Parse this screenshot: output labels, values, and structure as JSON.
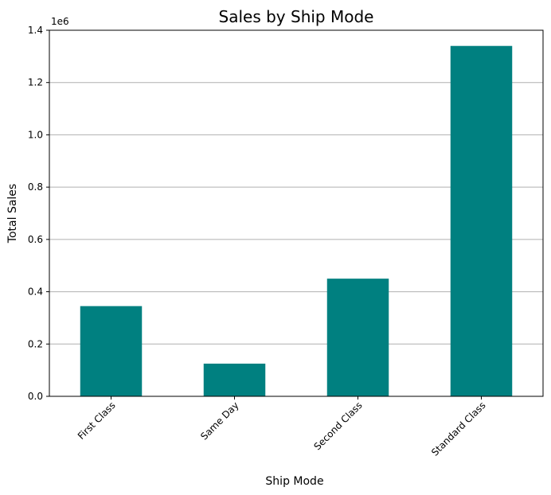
{
  "chart_data": {
    "type": "bar",
    "title": "Sales by Ship Mode",
    "xlabel": "Ship Mode",
    "ylabel": "Total Sales",
    "y_offset_label": "1e6",
    "y_scale_factor": 1000000,
    "categories": [
      "First Class",
      "Same Day",
      "Second Class",
      "Standard Class"
    ],
    "values": [
      345000,
      125000,
      450000,
      1340000
    ],
    "ylim": [
      0,
      1400000
    ],
    "yticks": [
      0,
      200000,
      400000,
      600000,
      800000,
      1000000,
      1200000,
      1400000
    ],
    "ytick_labels": [
      "0.0",
      "0.2",
      "0.4",
      "0.6",
      "0.8",
      "1.0",
      "1.2",
      "1.4"
    ],
    "x_tick_rotation": 45,
    "grid": "horizontal",
    "bar_color": "#008080",
    "grid_color": "#b0b0b0"
  }
}
